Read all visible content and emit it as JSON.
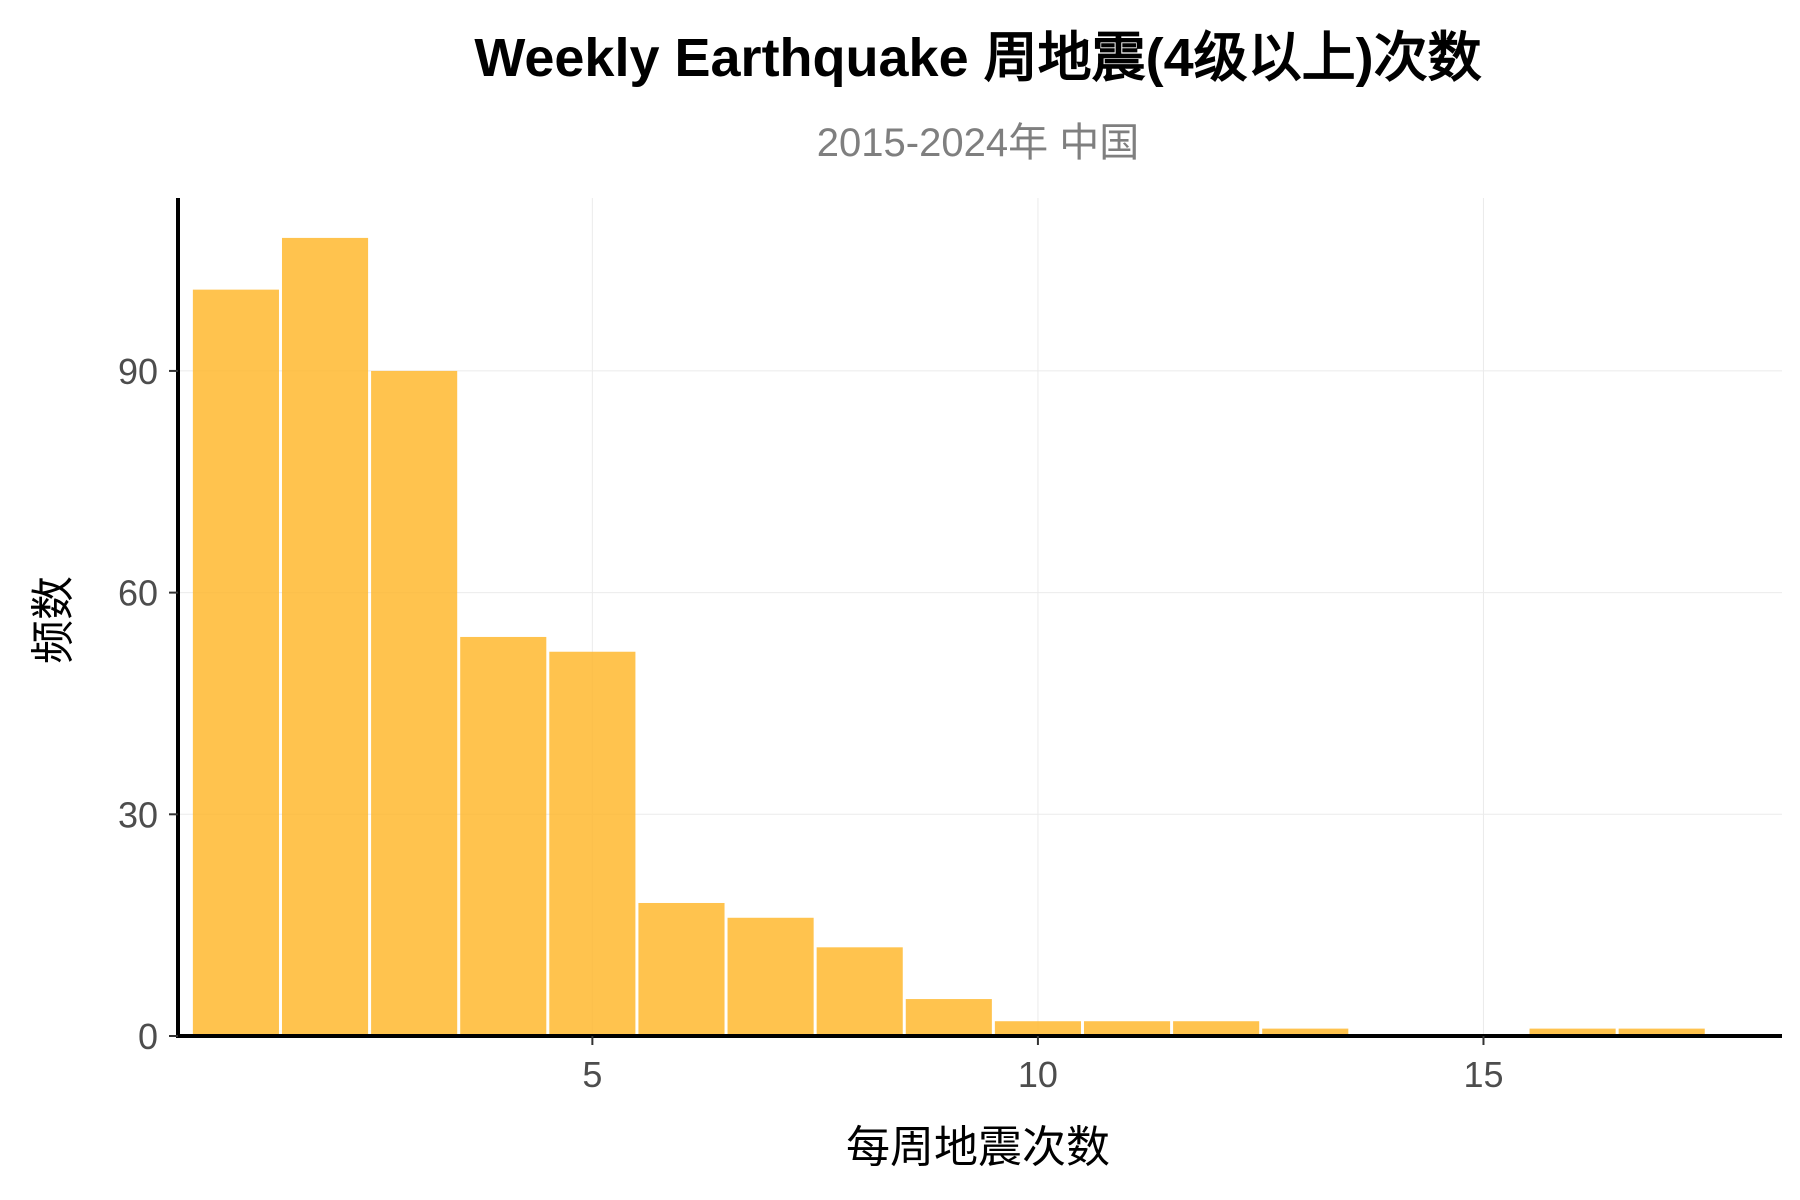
{
  "chart_data": {
    "type": "bar",
    "title": "Weekly Earthquake 周地震(4级以上)次数",
    "subtitle": "2015-2024年 中国",
    "xlabel": "每周地震次数",
    "ylabel": "频数",
    "x": [
      1,
      2,
      3,
      4,
      5,
      6,
      7,
      8,
      9,
      10,
      11,
      12,
      13,
      14,
      15,
      16,
      17
    ],
    "values": [
      101,
      108,
      90,
      54,
      52,
      18,
      16,
      12,
      5,
      2,
      2,
      2,
      1,
      0,
      0,
      1,
      1
    ],
    "bin_width": 1,
    "xlim": [
      0.35,
      18.35
    ],
    "ylim": [
      0,
      113.4
    ],
    "xticks": [
      5,
      10,
      15
    ],
    "yticks": [
      0,
      30,
      60,
      90
    ],
    "grid": true,
    "legend": "none",
    "bar_color": "#FFB627"
  }
}
